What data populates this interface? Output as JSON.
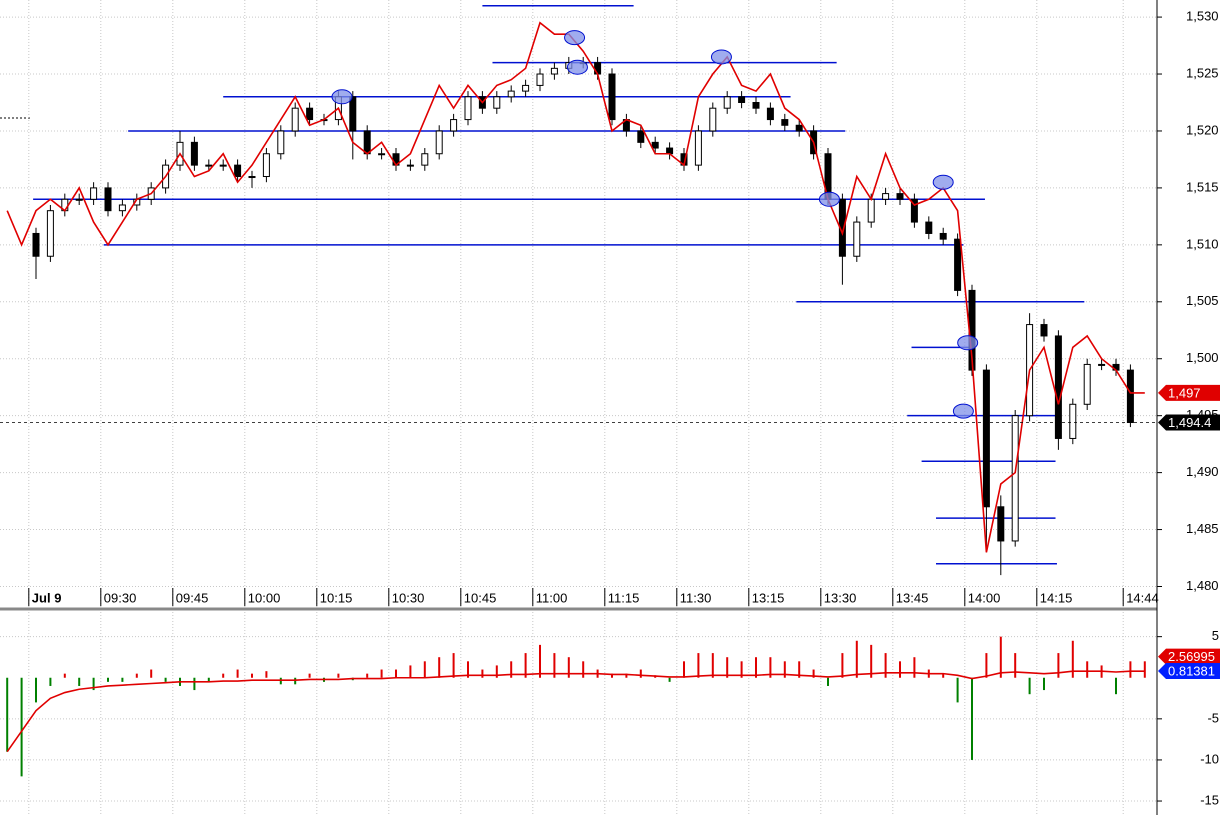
{
  "chart_data": [
    {
      "type": "candlestick",
      "categories": [
        null,
        null,
        "Jul 9",
        null,
        null,
        null,
        null,
        "09:30",
        null,
        null,
        null,
        null,
        "09:45",
        null,
        null,
        null,
        null,
        "10:00",
        null,
        null,
        null,
        null,
        "10:15",
        null,
        null,
        null,
        null,
        "10:30",
        null,
        null,
        null,
        null,
        "10:45",
        null,
        null,
        null,
        null,
        "11:00",
        null,
        null,
        null,
        null,
        "11:15",
        null,
        null,
        null,
        null,
        "11:30",
        null,
        null,
        null,
        null,
        "13:15",
        null,
        null,
        null,
        null,
        "13:30",
        null,
        null,
        null,
        null,
        "13:45",
        null,
        null,
        null,
        null,
        "14:00",
        null,
        null,
        null,
        null,
        "14:15",
        null,
        null,
        null,
        null,
        null,
        "14:44",
        null
      ],
      "open": [
        null,
        null,
        1511,
        1509,
        1513,
        1514,
        1514,
        1515,
        1513,
        1513.5,
        1514,
        1515,
        1517,
        1519,
        1517,
        1517,
        1517,
        1516,
        1516,
        1518,
        1520,
        1522,
        1521,
        1521,
        1523,
        1520,
        1518,
        1518,
        1517,
        1517,
        1518,
        1520,
        1521,
        1523,
        1522,
        1523,
        1523.5,
        1524,
        1525,
        1525.5,
        1526,
        1526,
        1525,
        1521,
        1520,
        1519,
        1518.5,
        1518,
        1517,
        1520,
        1522,
        1523,
        1522.5,
        1522,
        1521,
        1520.5,
        1520,
        1518,
        1514,
        1509,
        1512,
        1514,
        1514.5,
        1514,
        1512,
        1511,
        1510.5,
        1506,
        1499,
        1487,
        1484,
        1495,
        1503,
        1502,
        1493,
        1496,
        1499.5,
        1499.5,
        1499,
        null
      ],
      "high": [
        null,
        null,
        1511.5,
        1513.5,
        1514.5,
        1514.5,
        1515.5,
        1515.5,
        1514,
        1514.5,
        1515.5,
        1517.5,
        1520,
        1519.5,
        1517.5,
        1517.5,
        1517.5,
        1516.5,
        1518.5,
        1520.5,
        1522.5,
        1522.5,
        1521.5,
        1523.5,
        1523.5,
        1520.5,
        1518.5,
        1518.5,
        1517.5,
        1518.5,
        1520.5,
        1521.5,
        1523.5,
        1523.5,
        1523.5,
        1524,
        1524.5,
        1525.5,
        1526,
        1526.5,
        1526.5,
        1526.5,
        1525.5,
        1521.5,
        1520.5,
        1519.5,
        1519,
        1518.5,
        1520.5,
        1522.5,
        1523.5,
        1523.5,
        1523,
        1522.5,
        1521.5,
        1521,
        1520.5,
        1518.5,
        1514.5,
        1512.5,
        1514.5,
        1515,
        1515,
        1514.5,
        1512.5,
        1511.5,
        1511,
        1506.5,
        1499.5,
        1488,
        1495.5,
        1504,
        1503.5,
        1502.5,
        1496.5,
        1500,
        1500,
        1500,
        1499.5,
        null
      ],
      "low": [
        null,
        null,
        1507,
        1508.5,
        1512.5,
        1513.5,
        1513.5,
        1512.5,
        1512.5,
        1513,
        1513.5,
        1514.5,
        1516.5,
        1516.5,
        1516.5,
        1516.5,
        1515.5,
        1515,
        1515.5,
        1517.5,
        1519.5,
        1520.5,
        1520.5,
        1520.5,
        1517.5,
        1517.5,
        1517.5,
        1516.5,
        1516.5,
        1516.5,
        1517.5,
        1519.5,
        1520.5,
        1521.5,
        1521.5,
        1522.5,
        1523,
        1523.5,
        1524.5,
        1525,
        1525.5,
        1524.5,
        1520.5,
        1519.5,
        1518.5,
        1518,
        1517.5,
        1516.5,
        1516.5,
        1519.5,
        1521.5,
        1522,
        1521.5,
        1520.5,
        1520,
        1519.5,
        1517.5,
        1513.5,
        1506.5,
        1508.5,
        1511.5,
        1513.5,
        1513.5,
        1511.5,
        1510.5,
        1510,
        1505.5,
        1498.5,
        1483,
        1481,
        1483.5,
        1494.5,
        1501.5,
        1492,
        1492.5,
        1495.5,
        1499,
        1498.5,
        1494,
        null
      ],
      "close": [
        null,
        null,
        1509,
        1513,
        1514,
        1514,
        1515,
        1513,
        1513.5,
        1514,
        1515,
        1517,
        1519,
        1517,
        1517,
        1517,
        1516,
        1516,
        1518,
        1520,
        1522,
        1521,
        1521,
        1523,
        1520,
        1518,
        1518,
        1517,
        1517,
        1518,
        1520,
        1521,
        1523,
        1522,
        1523,
        1523.5,
        1524,
        1525,
        1525.5,
        1526,
        1526,
        1525,
        1521,
        1520,
        1519,
        1518.5,
        1518,
        1517,
        1520,
        1522,
        1523,
        1522.5,
        1522,
        1521,
        1520.5,
        1520,
        1518,
        1514,
        1509,
        1512,
        1514,
        1514.5,
        1514,
        1512,
        1511,
        1510.5,
        1506,
        1499,
        1487,
        1484,
        1495,
        1503,
        1502,
        1493,
        1496,
        1499.5,
        1499.5,
        1499,
        1494.4,
        null
      ],
      "up_color": "#ffffff",
      "down_color": "#000000",
      "line": {
        "color": "#e00000",
        "values": [
          1513,
          1510,
          1513,
          1514,
          1513,
          1515,
          1512,
          1510,
          1512,
          1514,
          1514.5,
          1516,
          1518,
          1516,
          1516.5,
          1518,
          1515.5,
          1517,
          1519,
          1521,
          1523,
          1520.5,
          1521,
          1522,
          1519,
          1518,
          1519,
          1517,
          1518,
          1521,
          1524,
          1522,
          1524,
          1522.5,
          1524,
          1524.5,
          1525.5,
          1529.5,
          1528.5,
          1528.5,
          1527,
          1525,
          1520,
          1521,
          1520.5,
          1518,
          1518,
          1517,
          1523,
          1525,
          1526.5,
          1524,
          1523.5,
          1525,
          1522,
          1521,
          1519,
          1514,
          1511,
          1516,
          1514,
          1518,
          1515,
          1513.5,
          1514,
          1515,
          1513,
          1500,
          1483,
          1489,
          1490,
          1499,
          1501,
          1496,
          1501,
          1502,
          1500,
          1499,
          1497,
          1497
        ]
      },
      "levels_color": "#0010d0",
      "levels": [
        {
          "value": 1531,
          "from": 33,
          "to": 43.5
        },
        {
          "value": 1526,
          "from": 33.7,
          "to": 57.6
        },
        {
          "value": 1523,
          "from": 15,
          "to": 54.4
        },
        {
          "value": 1520,
          "from": 8.4,
          "to": 58.2
        },
        {
          "value": 1514,
          "from": 1.8,
          "to": 67.9
        },
        {
          "value": 1510,
          "from": 6.7,
          "to": 66.4
        },
        {
          "value": 1505,
          "from": 54.8,
          "to": 74.8
        },
        {
          "value": 1501,
          "from": 62.8,
          "to": 67.2
        },
        {
          "value": 1495,
          "from": 62.5,
          "to": 72.8
        },
        {
          "value": 1491,
          "from": 63.5,
          "to": 72.8
        },
        {
          "value": 1486,
          "from": 64.5,
          "to": 72.8
        },
        {
          "value": 1482,
          "from": 64.5,
          "to": 72.9
        }
      ],
      "highlights": [
        {
          "x": 23.25,
          "y": 1523
        },
        {
          "x": 39.4,
          "y": 1528.2
        },
        {
          "x": 39.6,
          "y": 1525.6
        },
        {
          "x": 49.6,
          "y": 1526.5
        },
        {
          "x": 57.1,
          "y": 1514
        },
        {
          "x": 65,
          "y": 1515.5
        },
        {
          "x": 66.7,
          "y": 1501.4
        },
        {
          "x": 66.4,
          "y": 1495.4
        }
      ],
      "ylim": [
        1478.2,
        1531.5
      ],
      "yticks": [
        {
          "value": 1480,
          "label": "1,480"
        },
        {
          "value": 1485,
          "label": "1,485"
        },
        {
          "value": 1490,
          "label": "1,490"
        },
        {
          "value": 1495,
          "label": "1,495"
        },
        {
          "value": 1500,
          "label": "1,500"
        },
        {
          "value": 1505,
          "label": "1,505"
        },
        {
          "value": 1510,
          "label": "1,510"
        },
        {
          "value": 1515,
          "label": "1,515"
        },
        {
          "value": 1520,
          "label": "1,520"
        },
        {
          "value": 1525,
          "label": "1,525"
        },
        {
          "value": 1530,
          "label": "1,530"
        }
      ],
      "markers": [
        {
          "value": 1497,
          "label": "1,497",
          "color": "#e00000"
        },
        {
          "value": 1494.4,
          "label": "1,494.4",
          "color": "#000000"
        }
      ],
      "grid": true
    },
    {
      "type": "bar",
      "values": [
        -9,
        -12,
        -3,
        -1,
        0.5,
        -1,
        -1.5,
        -0.5,
        -0.5,
        0.5,
        1,
        -0.5,
        -1,
        -1.5,
        -0.5,
        0.5,
        1,
        0.5,
        0.8,
        -0.8,
        -0.8,
        0.5,
        -0.5,
        0.5,
        -0.3,
        0.5,
        1,
        1,
        1.5,
        2,
        2.5,
        3,
        2,
        1,
        1.5,
        2,
        3,
        4,
        3,
        2.5,
        2,
        1,
        0.5,
        0.5,
        1,
        0.3,
        -0.5,
        2,
        3,
        3,
        2.5,
        2,
        2.5,
        2.5,
        2,
        2,
        1,
        -1,
        3,
        4.5,
        4,
        3,
        2,
        2.5,
        1,
        0.5,
        -3,
        -10,
        3,
        5,
        3,
        -2,
        -1.5,
        3,
        4.5,
        2,
        1.5,
        -2,
        2,
        2
      ],
      "up_color": "#e00000",
      "down_color": "#008000",
      "line": {
        "color": "#e00000",
        "values": [
          -9,
          -6.5,
          -4,
          -2.5,
          -1.8,
          -1.4,
          -1.2,
          -1,
          -0.9,
          -0.8,
          -0.7,
          -0.6,
          -0.5,
          -0.5,
          -0.5,
          -0.4,
          -0.4,
          -0.3,
          -0.3,
          -0.3,
          -0.3,
          -0.2,
          -0.2,
          -0.2,
          -0.1,
          -0.1,
          -0.1,
          0,
          0,
          0,
          0.1,
          0.2,
          0.3,
          0.3,
          0.3,
          0.4,
          0.4,
          0.5,
          0.5,
          0.5,
          0.5,
          0.5,
          0.4,
          0.4,
          0.3,
          0.2,
          0.1,
          0.1,
          0.2,
          0.3,
          0.3,
          0.3,
          0.3,
          0.4,
          0.4,
          0.3,
          0.2,
          0.1,
          0.2,
          0.4,
          0.5,
          0.6,
          0.6,
          0.6,
          0.5,
          0.5,
          0.3,
          -0.1,
          0.2,
          0.6,
          0.7,
          0.6,
          0.5,
          0.6,
          0.8,
          0.8,
          0.8,
          0.7,
          0.8,
          0.8
        ]
      },
      "ylim": [
        -16.7,
        8
      ],
      "yticks": [
        5,
        -5,
        -10,
        -15
      ],
      "markers": [
        {
          "value": 2.56995,
          "label": "2.56995",
          "color": "#e00000"
        },
        {
          "value": 0.81381,
          "label": "0.81381",
          "color": "#0020ff"
        }
      ],
      "grid": true
    }
  ]
}
